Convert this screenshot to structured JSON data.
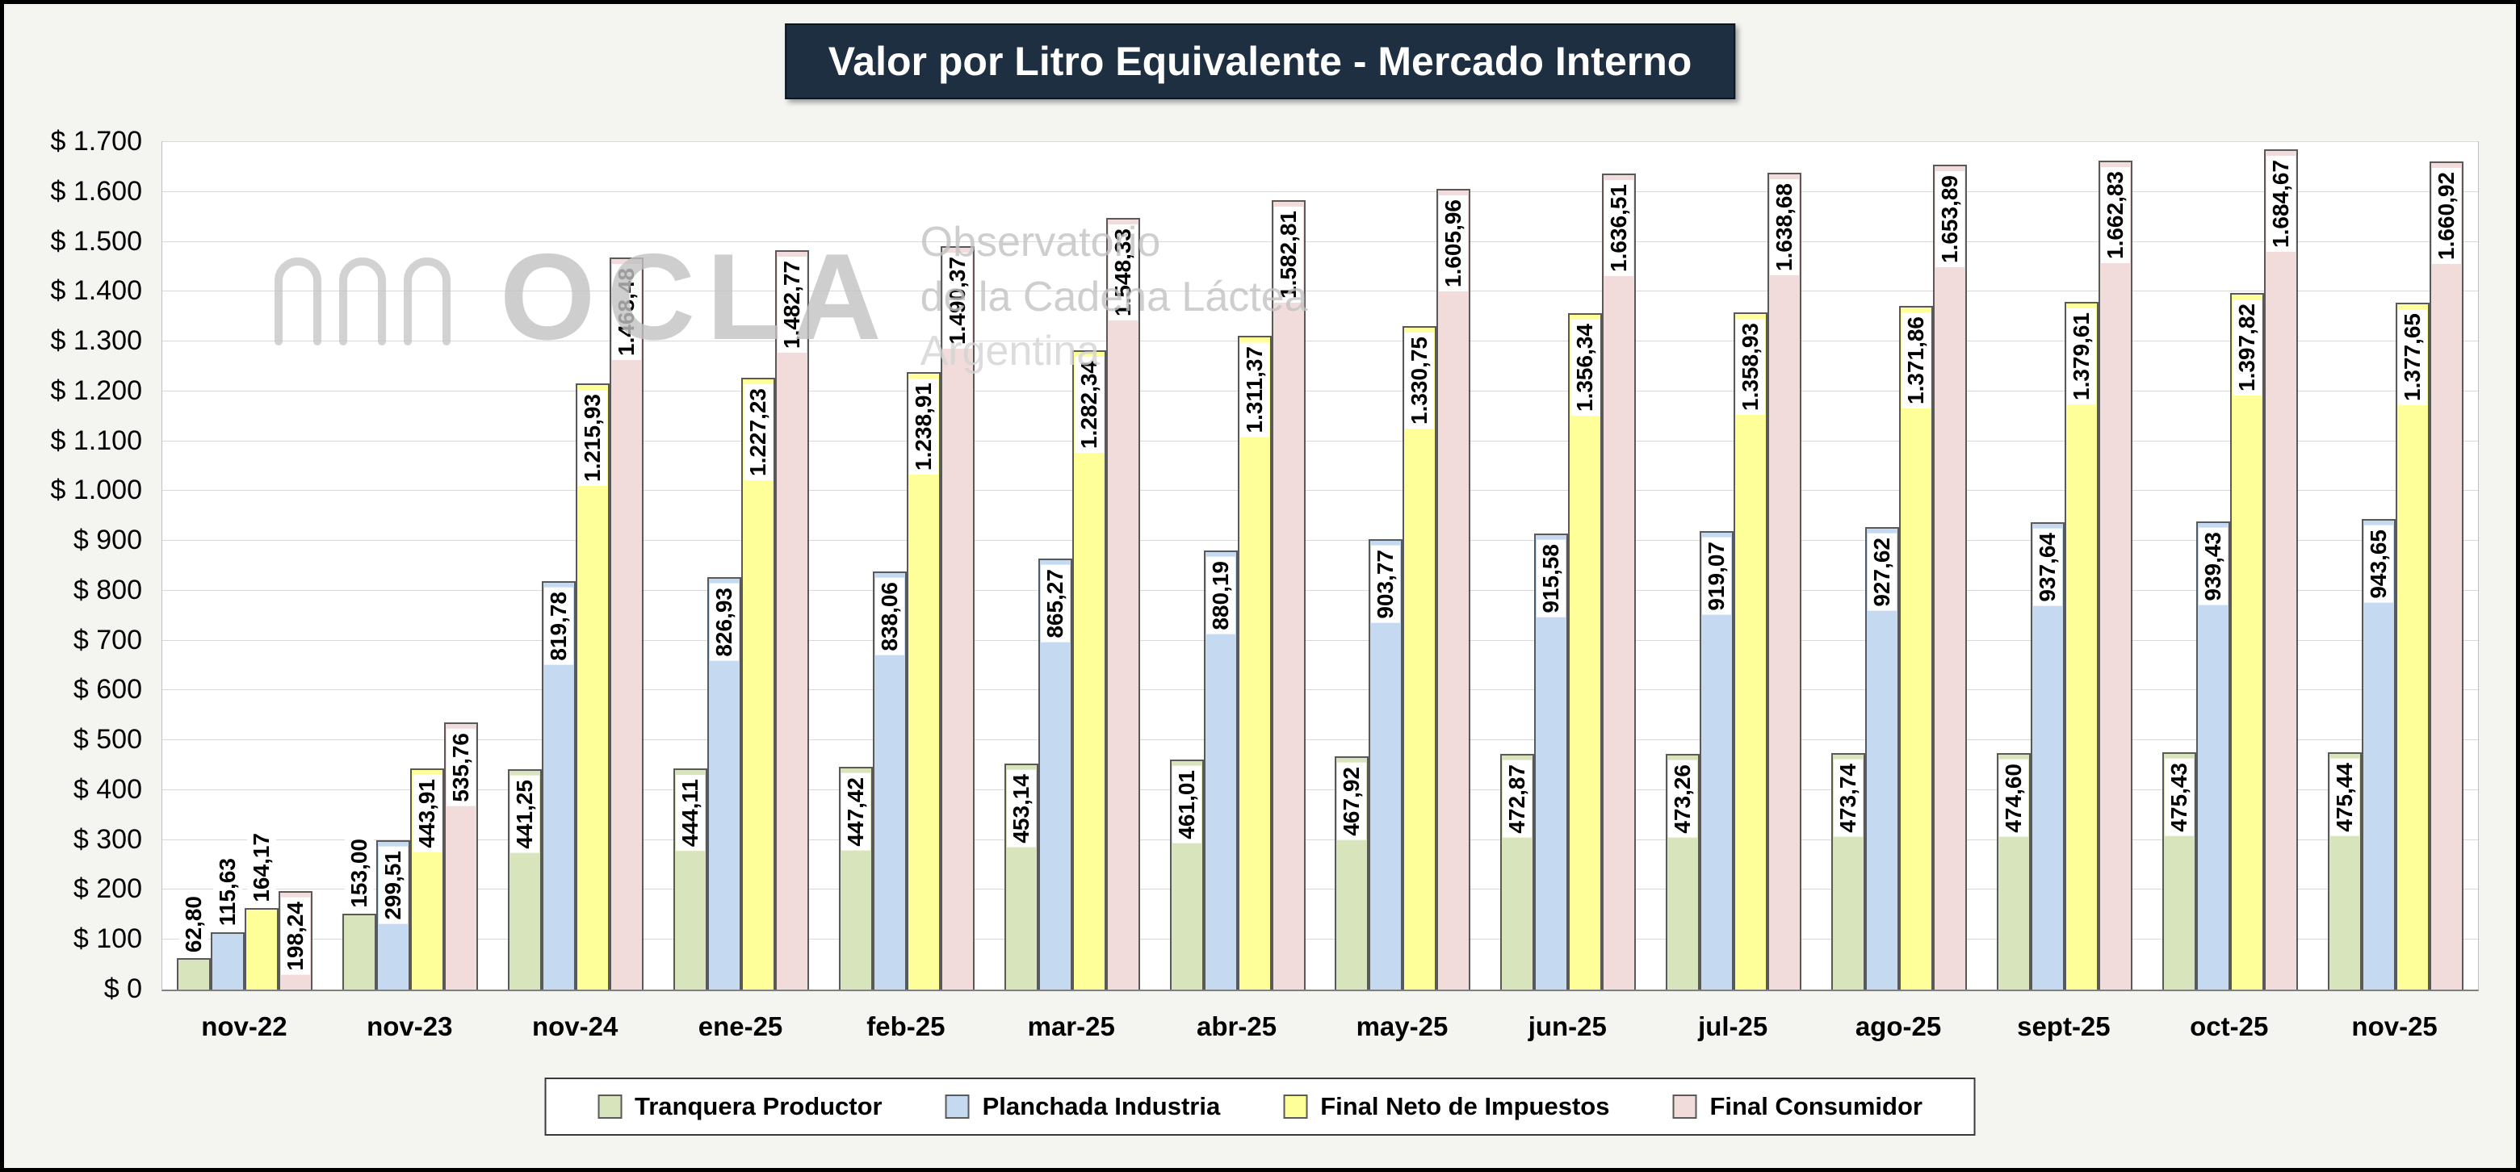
{
  "colors": {
    "title_bg": "#1e2f42",
    "title_text": "#ffffff",
    "grid": "#d9d9d9",
    "bar_border": "#595959",
    "watermark": "#c3c3c3"
  },
  "watermark": {
    "brand": "OCLA",
    "line1": "Observatorio",
    "line2": "de la Cadena Láctea",
    "line3": "Argentina"
  },
  "chart_data": {
    "type": "bar",
    "title": "Valor por Litro Equivalente - Mercado Interno",
    "xlabel": "",
    "ylabel": "",
    "ylim": [
      0,
      1700
    ],
    "ytick_step": 100,
    "ytick_labels": [
      "$ 0",
      "$ 100",
      "$ 200",
      "$ 300",
      "$ 400",
      "$ 500",
      "$ 600",
      "$ 700",
      "$ 800",
      "$ 900",
      "$ 1.000",
      "$ 1.100",
      "$ 1.200",
      "$ 1.300",
      "$ 1.400",
      "$ 1.500",
      "$ 1.600",
      "$ 1.700"
    ],
    "grid": true,
    "legend_position": "bottom",
    "categories": [
      "nov-22",
      "nov-23",
      "nov-24",
      "ene-25",
      "feb-25",
      "mar-25",
      "abr-25",
      "may-25",
      "jun-25",
      "jul-25",
      "ago-25",
      "sept-25",
      "oct-25",
      "nov-25"
    ],
    "series": [
      {
        "name": "Tranquera Productor",
        "color": "#d8e4bc",
        "values": [
          62.8,
          153.0,
          441.25,
          444.11,
          447.42,
          453.14,
          461.01,
          467.92,
          472.87,
          473.26,
          473.74,
          474.6,
          475.43,
          475.44
        ],
        "labels": [
          "62,80",
          "153,00",
          "441,25",
          "444,11",
          "447,42",
          "453,14",
          "461,01",
          "467,92",
          "472,87",
          "473,26",
          "473,74",
          "474,60",
          "475,43",
          "475,44"
        ]
      },
      {
        "name": "Planchada Industria",
        "color": "#c5d9f1",
        "values": [
          115.63,
          299.51,
          819.78,
          826.93,
          838.06,
          865.27,
          880.19,
          903.77,
          915.58,
          919.07,
          927.62,
          937.64,
          939.43,
          943.65
        ],
        "labels": [
          "115,63",
          "299,51",
          "819,78",
          "826,93",
          "838,06",
          "865,27",
          "880,19",
          "903,77",
          "915,58",
          "919,07",
          "927,62",
          "937,64",
          "939,43",
          "943,65"
        ]
      },
      {
        "name": "Final Neto de Impuestos",
        "color": "#ffff99",
        "values": [
          164.17,
          443.91,
          1215.93,
          1227.23,
          1238.91,
          1282.34,
          1311.37,
          1330.75,
          1356.34,
          1358.93,
          1371.86,
          1379.61,
          1397.82,
          1377.65
        ],
        "labels": [
          "164,17",
          "443,91",
          "1.215,93",
          "1.227,23",
          "1.238,91",
          "1.282,34",
          "1.311,37",
          "1.330,75",
          "1.356,34",
          "1.358,93",
          "1.371,86",
          "1.379,61",
          "1.397,82",
          "1.377,65"
        ]
      },
      {
        "name": "Final Consumidor",
        "color": "#f2dcdb",
        "values": [
          198.24,
          535.76,
          1468.48,
          1482.77,
          1490.37,
          1548.33,
          1582.81,
          1605.96,
          1636.51,
          1638.68,
          1653.89,
          1662.83,
          1684.67,
          1660.92
        ],
        "labels": [
          "198,24",
          "535,76",
          "1.468,48",
          "1.482,77",
          "1.490,37",
          "1.548,33",
          "1.582,81",
          "1.605,96",
          "1.636,51",
          "1.638,68",
          "1.653,89",
          "1.662,83",
          "1.684,67",
          "1.660,92"
        ]
      }
    ]
  }
}
